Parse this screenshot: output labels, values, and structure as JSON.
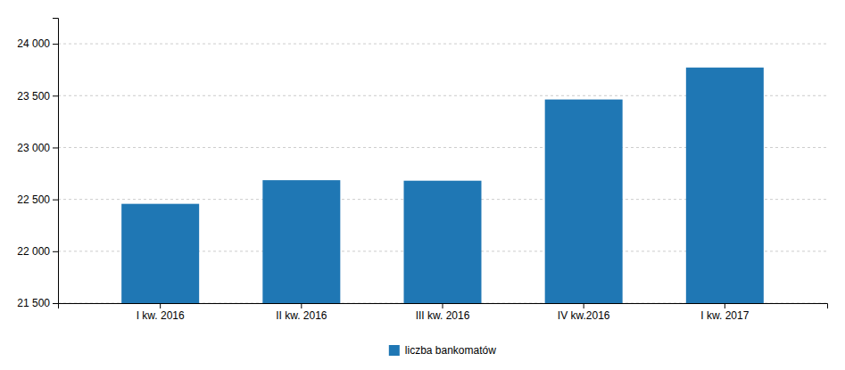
{
  "chart_data": {
    "type": "bar",
    "categories": [
      "I kw. 2016",
      "II kw. 2016",
      "III kw. 2016",
      "IV kw.2016",
      "I kw. 2017"
    ],
    "series": [
      {
        "name": "liczba bankomatów",
        "values": [
          22457,
          22685,
          22680,
          23463,
          23771
        ]
      }
    ],
    "ylim": [
      21500,
      24250
    ],
    "yticks": [
      {
        "value": 21500,
        "label": "21 500"
      },
      {
        "value": 22000,
        "label": "22 000"
      },
      {
        "value": 22500,
        "label": "22 500"
      },
      {
        "value": 23000,
        "label": "23 000"
      },
      {
        "value": 23500,
        "label": "23 500"
      },
      {
        "value": 24000,
        "label": "24 000"
      }
    ],
    "grid": true,
    "legend": "bottom"
  }
}
